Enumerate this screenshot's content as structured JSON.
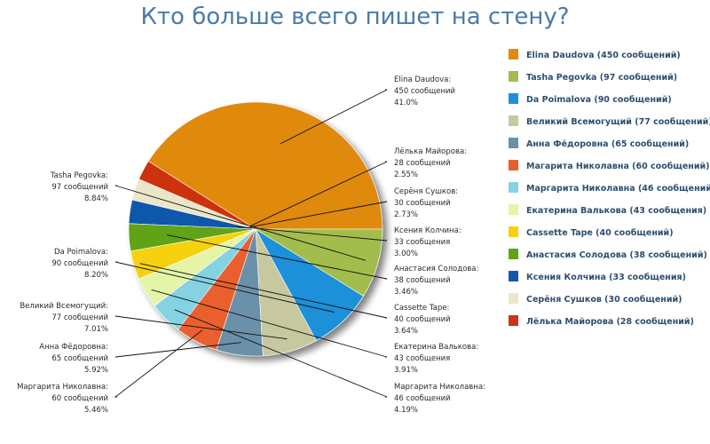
{
  "chart_data": {
    "type": "pie",
    "title": "Кто больше всего пишет на стену?",
    "slices": [
      {
        "name": "Elina Daudova",
        "value": 450,
        "percent": "41.0%",
        "color": "#e08a0b",
        "callout": [
          "Elina Daudova:",
          "450 сообщений",
          "41.0%"
        ],
        "legend": "Elina Daudova (450 сообщений)"
      },
      {
        "name": "Лёлька Майорова",
        "value": 28,
        "percent": "2.55%",
        "color": "#cc3311",
        "callout": [
          "Лёлька Майорова:",
          "28 сообщений",
          "2.55%"
        ],
        "legend": "Лёлька Майорова (28 сообщений)"
      },
      {
        "name": "Серёня Сушков",
        "value": 30,
        "percent": "2.73%",
        "color": "#ece6c8",
        "callout": [
          "Серёня Сушков:",
          "30 сообщений",
          "2.73%"
        ],
        "legend": "Серёня Сушков (30 сообщений)"
      },
      {
        "name": "Ксения Колчина",
        "value": 33,
        "percent": "3.00%",
        "color": "#1158aa",
        "callout": [
          "Ксения Колчина:",
          "33 сообщения",
          "3.00%"
        ],
        "legend": "Ксения Колчина (33 сообщения)"
      },
      {
        "name": "Анастасия Солодова",
        "value": 38,
        "percent": "3.46%",
        "color": "#60a313",
        "callout": [
          "Анастасия Солодова:",
          "38 сообщений",
          "3.46%"
        ],
        "legend": "Анастасия Солодова (38 сообщений)"
      },
      {
        "name": "Cassette Tape",
        "value": 40,
        "percent": "3.64%",
        "color": "#f6d10f",
        "callout": [
          "Cassette Tape:",
          "40 сообщений",
          "3.64%"
        ],
        "legend": "Cassette Tape (40 сообщений)"
      },
      {
        "name": "Екатерина Валькова",
        "value": 43,
        "percent": "3.91%",
        "color": "#e4f5a8",
        "callout": [
          "Екатерина Валькова:",
          "43 сообщения",
          "3.91%"
        ],
        "legend": "Екатерина Валькова (43 сообщения)"
      },
      {
        "name": "Маргарита Николавна",
        "value": 46,
        "percent": "4.19%",
        "color": "#84d2e2",
        "callout": [
          "Маргарита Николавна:",
          "46 сообщений",
          "4.19%"
        ],
        "legend": "Маргарита Николавна (46 сообщений)"
      },
      {
        "name": "Маргарита Николавна",
        "value": 60,
        "percent": "5.46%",
        "color": "#ea5f2d",
        "callout": [
          "Маргарита Николавна:",
          "60 сообщений",
          "5.46%"
        ],
        "legend": "Магарита Николавна (60 сообщений)"
      },
      {
        "name": "Анна Фёдоровна",
        "value": 65,
        "percent": "5.92%",
        "color": "#6a90aa",
        "callout": [
          "Анна Фёдоровна:",
          "65 сообщений",
          "5.92%"
        ],
        "legend": "Анна Фёдоровна (65 сообщений)"
      },
      {
        "name": "Великий Всемогущий",
        "value": 77,
        "percent": "7.01%",
        "color": "#c8c8a0",
        "callout": [
          "Великий Всемогущий:",
          "77 сообщений",
          "7.01%"
        ],
        "legend": "Великий Всемогущий (77 сообщений)"
      },
      {
        "name": "Da Poimalova",
        "value": 90,
        "percent": "8.20%",
        "color": "#1e90d8",
        "callout": [
          "Da Poimalova:",
          "90 сообщений",
          "8.20%"
        ],
        "legend": "Da Poimalova (90 сообщений)"
      },
      {
        "name": "Tasha Pegovka",
        "value": 97,
        "percent": "8.84%",
        "color": "#a3bd4d",
        "callout": [
          "Tasha Pegovka:",
          "97 сообщений",
          "8.84%"
        ],
        "legend": "Tasha Pegovka (97 сообщений)"
      }
    ],
    "legend_order": [
      "Elina Daudova",
      "Tasha Pegovka",
      "Da Poimalova",
      "Великий Всемогущий",
      "Анна Фёдоровна",
      "Маргарита Николавна",
      "Маргарита Николавна 46",
      "Екатерина Валькова",
      "Cassette Tape",
      "Анастасия Солодова",
      "Ксения Колчина",
      "Серёня Сушков",
      "Лёлька Майорова"
    ],
    "legend_placement": "right"
  }
}
